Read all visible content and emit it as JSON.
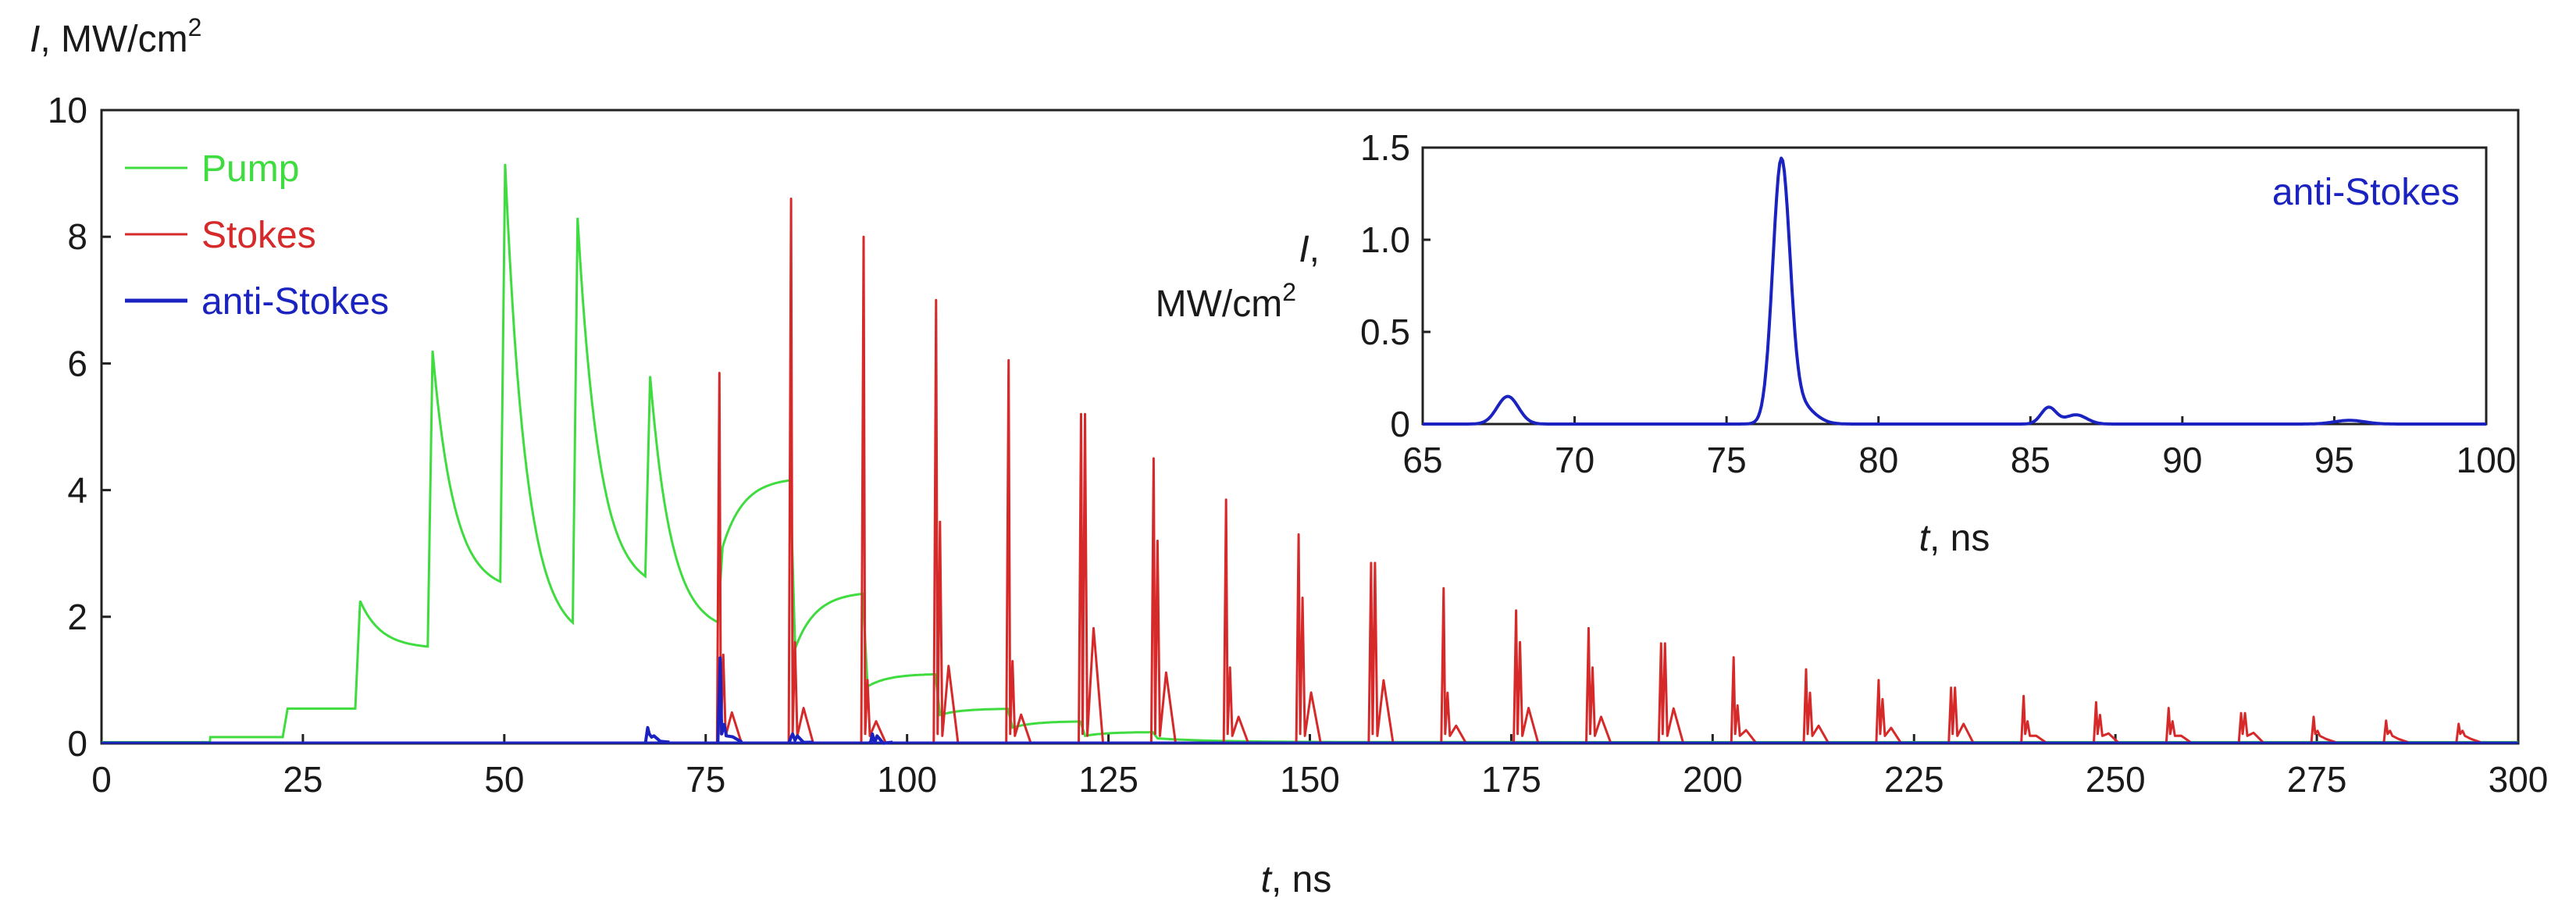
{
  "colors": {
    "pump": "#3fdc3f",
    "stokes": "#d62a2a",
    "anti_stokes": "#1a22c0",
    "axis": "#222222"
  },
  "chart_data": [
    {
      "id": "main",
      "type": "line",
      "title": "",
      "ylabel": {
        "symbol": "I",
        "rest": ", MW/cm",
        "sup": "2"
      },
      "xlabel": {
        "symbol": "t",
        "rest": ", ns"
      },
      "xlim": [
        0,
        300
      ],
      "ylim": [
        0,
        10
      ],
      "x_ticks": [
        0,
        25,
        50,
        75,
        100,
        125,
        150,
        175,
        200,
        225,
        250,
        275,
        300
      ],
      "y_ticks": [
        0,
        2,
        4,
        6,
        8,
        10
      ],
      "legend_position": "top-left",
      "series": [
        {
          "name": "Pump",
          "color_key": "pump",
          "kind": "pump-pulses",
          "baseline": 0.1,
          "start": 13.5,
          "steps": [
            {
              "t": 22.5,
              "value": 0.55
            },
            {
              "t": 31.5,
              "value": 2.25
            },
            {
              "t": 40.5,
              "value": 6.2
            },
            {
              "t": 49.5,
              "value": 9.15
            },
            {
              "t": 58.5,
              "value": 8.3
            },
            {
              "t": 67.5,
              "value": 5.8
            },
            {
              "t": 76.5,
              "value": 3.1
            },
            {
              "t": 85.5,
              "value": 1.5
            },
            {
              "t": 94.5,
              "value": 0.9
            },
            {
              "t": 103.5,
              "value": 0.45
            },
            {
              "t": 112.5,
              "value": 0.25
            },
            {
              "t": 121.5,
              "value": 0.12
            },
            {
              "t": 130.5,
              "value": 0.08
            }
          ],
          "decay_to": [
            0.55,
            1.5,
            2.4,
            1.6,
            2.4,
            1.75,
            4.2,
            2.4,
            1.1,
            0.55,
            0.35,
            0.18,
            0.1
          ]
        },
        {
          "name": "Stokes",
          "color_key": "stokes",
          "kind": "spikes",
          "peaks": [
            {
              "t": 76.7,
              "value": 5.85,
              "echo": 1.4
            },
            {
              "t": 85.6,
              "value": 8.6,
              "echo": 1.6
            },
            {
              "t": 94.6,
              "value": 8.0,
              "echo": 1.0
            },
            {
              "t": 103.6,
              "value": 7.0,
              "echo": 3.5
            },
            {
              "t": 112.6,
              "value": 6.05,
              "echo": 1.3
            },
            {
              "t": 121.6,
              "value": 5.2,
              "echo": 5.2
            },
            {
              "t": 130.6,
              "value": 4.5,
              "echo": 3.2
            },
            {
              "t": 139.6,
              "value": 3.85,
              "echo": 1.2
            },
            {
              "t": 148.6,
              "value": 3.3,
              "echo": 2.3
            },
            {
              "t": 157.6,
              "value": 2.85,
              "echo": 2.85
            },
            {
              "t": 166.6,
              "value": 2.45,
              "echo": 0.8
            },
            {
              "t": 175.6,
              "value": 2.1,
              "echo": 1.6
            },
            {
              "t": 184.6,
              "value": 1.82,
              "echo": 1.2
            },
            {
              "t": 193.6,
              "value": 1.58,
              "echo": 1.58
            },
            {
              "t": 202.6,
              "value": 1.36,
              "echo": 0.6
            },
            {
              "t": 211.6,
              "value": 1.17,
              "echo": 0.8
            },
            {
              "t": 220.6,
              "value": 1.0,
              "echo": 0.7
            },
            {
              "t": 229.6,
              "value": 0.88,
              "echo": 0.88
            },
            {
              "t": 238.6,
              "value": 0.75,
              "echo": 0.35
            },
            {
              "t": 247.6,
              "value": 0.65,
              "echo": 0.45
            },
            {
              "t": 256.6,
              "value": 0.56,
              "echo": 0.35
            },
            {
              "t": 265.6,
              "value": 0.48,
              "echo": 0.48
            },
            {
              "t": 274.6,
              "value": 0.42,
              "echo": 0.2
            },
            {
              "t": 283.6,
              "value": 0.36,
              "echo": 0.2
            },
            {
              "t": 292.6,
              "value": 0.31,
              "echo": 0.2
            }
          ]
        },
        {
          "name": "anti-Stokes",
          "color_key": "anti_stokes",
          "kind": "spikes",
          "peaks": [
            {
              "t": 67.8,
              "value": 0.25,
              "echo": 0.1
            },
            {
              "t": 76.8,
              "value": 1.35,
              "echo": 0.3
            },
            {
              "t": 85.6,
              "value": 0.1,
              "echo": 0.05
            },
            {
              "t": 95.5,
              "value": 0.03,
              "echo": 0.01
            }
          ]
        }
      ]
    },
    {
      "id": "inset",
      "type": "line",
      "title": "",
      "ylabel": {
        "symbol": "I",
        "rest": ",",
        "line2": "MW/cm",
        "sup": "2"
      },
      "xlabel": {
        "symbol": "t",
        "rest": ", ns"
      },
      "xlim": [
        65,
        100
      ],
      "ylim": [
        0,
        1.5
      ],
      "x_ticks": [
        65,
        70,
        75,
        80,
        85,
        90,
        95,
        100
      ],
      "y_ticks": [
        0,
        0.5,
        1.0,
        1.5
      ],
      "y_tick_labels": [
        "0",
        "0.5",
        "1.0",
        "1.5"
      ],
      "legend_label": "anti-Stokes",
      "legend_position": "top-right",
      "series": [
        {
          "name": "anti-Stokes",
          "color_key": "anti_stokes",
          "kind": "gauss",
          "peaks": [
            {
              "t": 67.8,
              "value": 0.15,
              "width": 0.35
            },
            {
              "t": 76.8,
              "value": 1.37,
              "width": 0.28
            },
            {
              "t": 77.3,
              "value": 0.12,
              "width": 0.5
            },
            {
              "t": 85.6,
              "value": 0.09,
              "width": 0.25
            },
            {
              "t": 86.5,
              "value": 0.05,
              "width": 0.35
            },
            {
              "t": 95.5,
              "value": 0.02,
              "width": 0.5
            }
          ]
        }
      ]
    }
  ]
}
